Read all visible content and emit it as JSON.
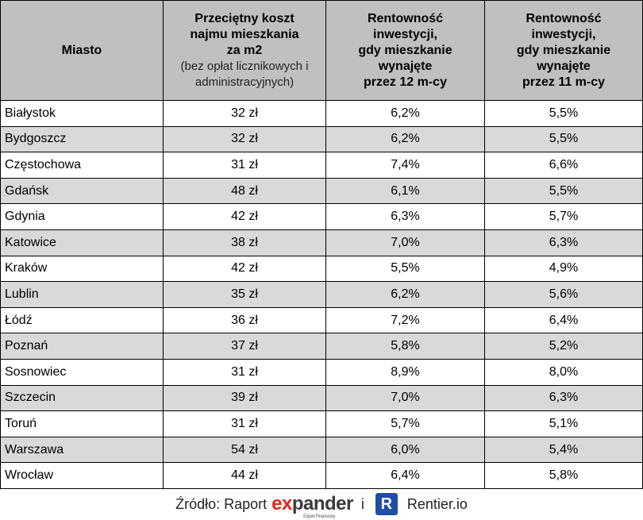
{
  "table": {
    "header": [
      {
        "lines": [
          "Miasto"
        ]
      },
      {
        "lines": [
          "Przeciętny koszt",
          "najmu mieszkania",
          "za m2"
        ],
        "note": [
          "(bez opłat licznikowych i",
          "administracyjnych)"
        ]
      },
      {
        "lines": [
          "Rentowność",
          "inwestycji,",
          "gdy mieszkanie",
          "wynajęte",
          "przez 12 m-cy"
        ]
      },
      {
        "lines": [
          "Rentowność",
          "inwestycji,",
          "gdy mieszkanie",
          "wynajęte",
          "przez 11 m-cy"
        ]
      }
    ],
    "rows": [
      [
        "Białystok",
        "32 zł",
        "6,2%",
        "5,5%"
      ],
      [
        "Bydgoszcz",
        "32 zł",
        "6,2%",
        "5,5%"
      ],
      [
        "Częstochowa",
        "31 zł",
        "7,4%",
        "6,6%"
      ],
      [
        "Gdańsk",
        "48 zł",
        "6,1%",
        "5,5%"
      ],
      [
        "Gdynia",
        "42 zł",
        "6,3%",
        "5,7%"
      ],
      [
        "Katowice",
        "38 zł",
        "7,0%",
        "6,3%"
      ],
      [
        "Kraków",
        "42 zł",
        "5,5%",
        "4,9%"
      ],
      [
        "Lublin",
        "35 zł",
        "6,2%",
        "5,6%"
      ],
      [
        "Łódź",
        "36 zł",
        "7,2%",
        "6,4%"
      ],
      [
        "Poznań",
        "37 zł",
        "5,8%",
        "5,2%"
      ],
      [
        "Sosnowiec",
        "31 zł",
        "8,9%",
        "8,0%"
      ],
      [
        "Szczecin",
        "39 zł",
        "7,0%",
        "6,3%"
      ],
      [
        "Toruń",
        "31 zł",
        "5,7%",
        "5,1%"
      ],
      [
        "Warszawa",
        "54 zł",
        "6,0%",
        "5,4%"
      ],
      [
        "Wrocław",
        "44 zł",
        "6,4%",
        "5,8%"
      ]
    ]
  },
  "footer": {
    "source": "Źródło: Raport",
    "logo_accent": "ex",
    "logo_rest": "pander",
    "logo_tagline": "Expert Finansowy",
    "conjunction": "i",
    "icon": "R",
    "brand": "Rentier.io"
  }
}
